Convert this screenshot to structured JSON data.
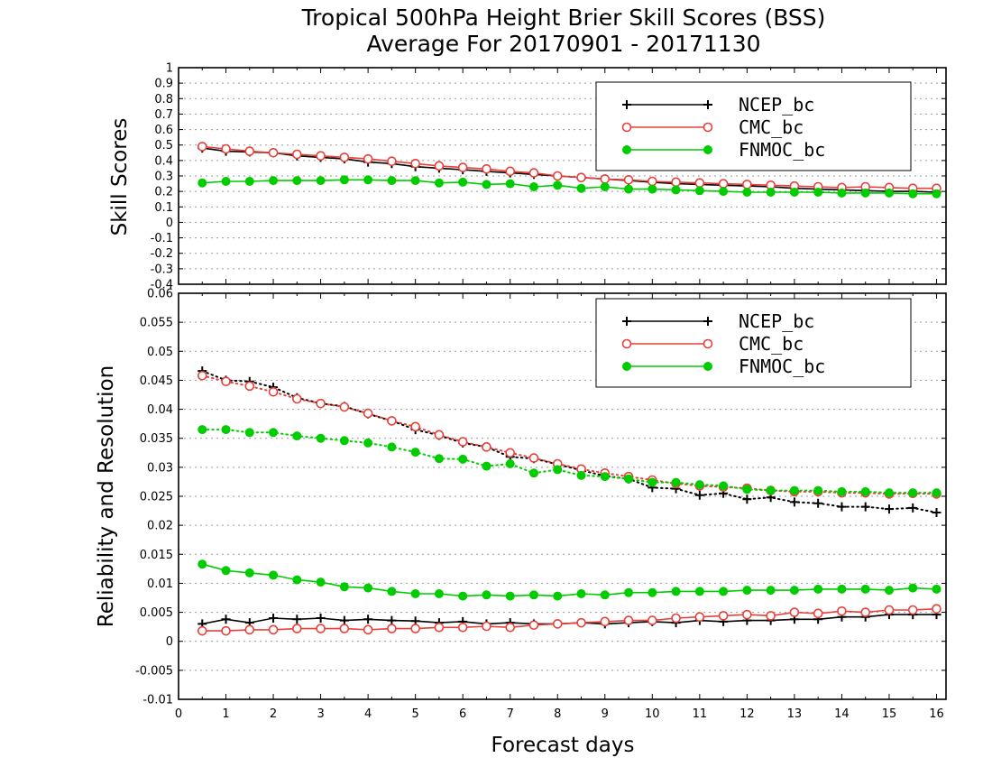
{
  "chart_data": [
    {
      "type": "line",
      "title": "Tropical 500hPa Height Brier Skill Scores (BSS)",
      "subtitle": "Average For 20170901 - 20171130",
      "ylabel": "Skill Scores",
      "xlabel": "",
      "xlim": [
        0,
        16.2
      ],
      "ylim": [
        -0.4,
        1
      ],
      "yticks": [
        "1",
        "0.9",
        "0.8",
        "0.7",
        "0.6",
        "0.5",
        "0.4",
        "0.3",
        "0.2",
        "0.1",
        "0",
        "-0.1",
        "-0.2",
        "-0.3",
        "-0.4"
      ],
      "grid": true,
      "legend_position": "top-right",
      "x": [
        0.5,
        1,
        1.5,
        2,
        2.5,
        3,
        3.5,
        4,
        4.5,
        5,
        5.5,
        6,
        6.5,
        7,
        7.5,
        8,
        8.5,
        9,
        9.5,
        10,
        10.5,
        11,
        11.5,
        12,
        12.5,
        13,
        13.5,
        14,
        14.5,
        15,
        15.5,
        16
      ],
      "series": [
        {
          "name": "NCEP_bc",
          "color": "#000000",
          "marker": "plus",
          "line": "solid",
          "values": [
            0.48,
            0.46,
            0.455,
            0.45,
            0.43,
            0.42,
            0.41,
            0.39,
            0.38,
            0.36,
            0.35,
            0.34,
            0.33,
            0.32,
            0.31,
            0.3,
            0.29,
            0.28,
            0.27,
            0.26,
            0.25,
            0.245,
            0.24,
            0.235,
            0.23,
            0.22,
            0.215,
            0.21,
            0.205,
            0.2,
            0.2,
            0.195
          ]
        },
        {
          "name": "CMC_bc",
          "color": "#e8403a",
          "marker": "open-circle",
          "line": "solid",
          "values": [
            0.49,
            0.475,
            0.46,
            0.45,
            0.44,
            0.43,
            0.42,
            0.41,
            0.395,
            0.38,
            0.365,
            0.355,
            0.345,
            0.33,
            0.32,
            0.3,
            0.29,
            0.28,
            0.275,
            0.265,
            0.26,
            0.255,
            0.25,
            0.245,
            0.24,
            0.235,
            0.23,
            0.225,
            0.23,
            0.225,
            0.22,
            0.22
          ]
        },
        {
          "name": "FNMOC_bc",
          "color": "#00cc00",
          "marker": "filled-circle",
          "line": "solid",
          "values": [
            0.255,
            0.265,
            0.265,
            0.27,
            0.27,
            0.27,
            0.275,
            0.275,
            0.27,
            0.27,
            0.255,
            0.26,
            0.245,
            0.25,
            0.23,
            0.24,
            0.22,
            0.23,
            0.215,
            0.215,
            0.21,
            0.205,
            0.2,
            0.195,
            0.195,
            0.195,
            0.195,
            0.19,
            0.19,
            0.19,
            0.185,
            0.185
          ]
        }
      ]
    },
    {
      "type": "line",
      "ylabel": "Reliability and Resolution",
      "xlabel": "Forecast days",
      "xlim": [
        0,
        16.2
      ],
      "ylim": [
        -0.01,
        0.06
      ],
      "xticks": [
        "0",
        "1",
        "2",
        "3",
        "4",
        "5",
        "6",
        "7",
        "8",
        "9",
        "10",
        "11",
        "12",
        "13",
        "14",
        "15",
        "16"
      ],
      "yticks": [
        "0.06",
        "0.055",
        "0.05",
        "0.045",
        "0.04",
        "0.035",
        "0.03",
        "0.025",
        "0.02",
        "0.015",
        "0.01",
        "0.005",
        "0",
        "-0.005",
        "-0.01"
      ],
      "grid": true,
      "legend_position": "top-right",
      "x": [
        0.5,
        1,
        1.5,
        2,
        2.5,
        3,
        3.5,
        4,
        4.5,
        5,
        5.5,
        6,
        6.5,
        7,
        7.5,
        8,
        8.5,
        9,
        9.5,
        10,
        10.5,
        11,
        11.5,
        12,
        12.5,
        13,
        13.5,
        14,
        14.5,
        15,
        15.5,
        16
      ],
      "series": [
        {
          "name": "NCEP_bc",
          "color": "#000000",
          "marker": "plus",
          "line": "solid",
          "values": [
            0.003,
            0.0038,
            0.0032,
            0.004,
            0.0038,
            0.004,
            0.0036,
            0.0038,
            0.0036,
            0.0035,
            0.0032,
            0.0034,
            0.003,
            0.0032,
            0.003,
            0.003,
            0.0032,
            0.003,
            0.0032,
            0.0034,
            0.0032,
            0.0036,
            0.0034,
            0.0036,
            0.0036,
            0.0038,
            0.0038,
            0.0042,
            0.0042,
            0.0046,
            0.0046,
            0.0046
          ]
        },
        {
          "name": "NCEP_bc",
          "color": "#000000",
          "marker": "plus",
          "line": "dotted",
          "values": [
            0.0466,
            0.045,
            0.0448,
            0.0438,
            0.042,
            0.041,
            0.0405,
            0.0392,
            0.038,
            0.0365,
            0.0355,
            0.0342,
            0.0335,
            0.0318,
            0.0315,
            0.0305,
            0.0295,
            0.0285,
            0.028,
            0.0265,
            0.0263,
            0.0252,
            0.0255,
            0.0245,
            0.0248,
            0.024,
            0.0238,
            0.0232,
            0.0232,
            0.0228,
            0.023,
            0.0222
          ]
        },
        {
          "name": "CMC_bc",
          "color": "#e8403a",
          "marker": "open-circle",
          "line": "solid",
          "values": [
            0.0018,
            0.0018,
            0.002,
            0.002,
            0.0022,
            0.0022,
            0.0022,
            0.002,
            0.0022,
            0.0022,
            0.0024,
            0.0024,
            0.0026,
            0.0024,
            0.0028,
            0.003,
            0.0032,
            0.0034,
            0.0036,
            0.0036,
            0.004,
            0.0042,
            0.0044,
            0.0046,
            0.0044,
            0.005,
            0.0048,
            0.0052,
            0.005,
            0.0054,
            0.0054,
            0.0056
          ]
        },
        {
          "name": "CMC_bc",
          "color": "#e8403a",
          "marker": "open-circle",
          "line": "dotted",
          "values": [
            0.0458,
            0.0448,
            0.044,
            0.043,
            0.0418,
            0.041,
            0.0404,
            0.0393,
            0.038,
            0.037,
            0.0356,
            0.0344,
            0.0335,
            0.0325,
            0.0316,
            0.0306,
            0.0297,
            0.029,
            0.0284,
            0.0278,
            0.0272,
            0.0268,
            0.0266,
            0.0264,
            0.026,
            0.0258,
            0.0258,
            0.0256,
            0.0256,
            0.0254,
            0.0255,
            0.0254
          ]
        },
        {
          "name": "FNMOC_bc",
          "color": "#00cc00",
          "marker": "filled-circle",
          "line": "solid",
          "values": [
            0.0133,
            0.0122,
            0.0118,
            0.0114,
            0.0106,
            0.0102,
            0.0094,
            0.0092,
            0.0086,
            0.0082,
            0.0082,
            0.0078,
            0.008,
            0.0078,
            0.008,
            0.0078,
            0.0082,
            0.008,
            0.0084,
            0.0084,
            0.0086,
            0.0086,
            0.0086,
            0.0088,
            0.0088,
            0.0088,
            0.009,
            0.009,
            0.009,
            0.0088,
            0.0092,
            0.009
          ]
        },
        {
          "name": "FNMOC_bc",
          "color": "#00cc00",
          "marker": "filled-circle",
          "line": "dotted",
          "values": [
            0.0365,
            0.0365,
            0.036,
            0.036,
            0.0354,
            0.035,
            0.0346,
            0.0342,
            0.0335,
            0.0326,
            0.0315,
            0.0314,
            0.0302,
            0.0306,
            0.029,
            0.0296,
            0.0286,
            0.0284,
            0.028,
            0.0274,
            0.0274,
            0.027,
            0.0268,
            0.0262,
            0.026,
            0.026,
            0.026,
            0.0258,
            0.0258,
            0.0256,
            0.0256,
            0.0256
          ]
        }
      ]
    }
  ]
}
